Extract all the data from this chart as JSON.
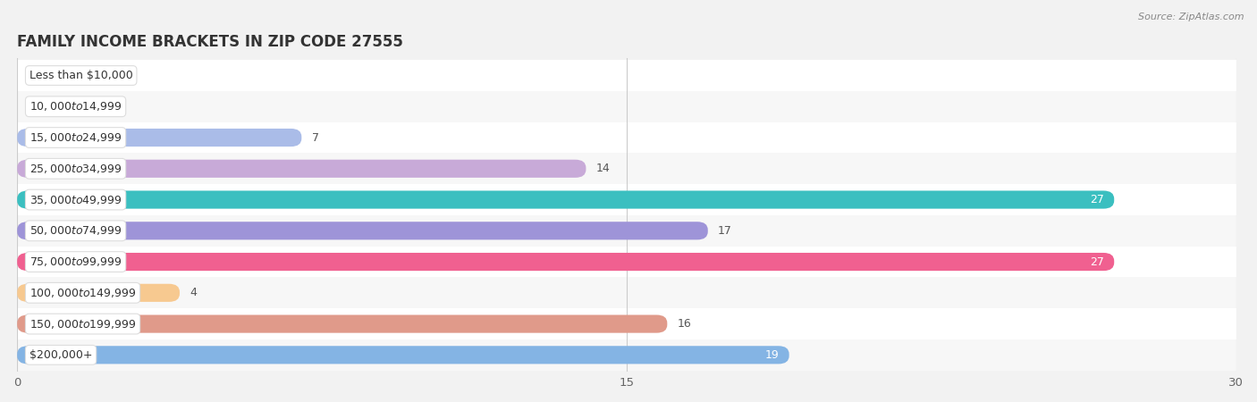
{
  "title": "FAMILY INCOME BRACKETS IN ZIP CODE 27555",
  "source": "Source: ZipAtlas.com",
  "categories": [
    "Less than $10,000",
    "$10,000 to $14,999",
    "$15,000 to $24,999",
    "$25,000 to $34,999",
    "$35,000 to $49,999",
    "$50,000 to $74,999",
    "$75,000 to $99,999",
    "$100,000 to $149,999",
    "$150,000 to $199,999",
    "$200,000+"
  ],
  "values": [
    0,
    0,
    7,
    14,
    27,
    17,
    27,
    4,
    16,
    19
  ],
  "bar_colors": [
    "#f5c78e",
    "#f4a4a4",
    "#aabce8",
    "#c8aad8",
    "#3bbfc0",
    "#9e94d8",
    "#f06090",
    "#f7c990",
    "#e09a8a",
    "#84b4e4"
  ],
  "value_inside": [
    false,
    false,
    false,
    false,
    true,
    false,
    true,
    false,
    false,
    true
  ],
  "xlim_max": 30,
  "xticks": [
    0,
    15,
    30
  ],
  "bg_color": "#f2f2f2",
  "row_bg_even": "#ffffff",
  "row_bg_odd": "#f7f7f7",
  "title_fontsize": 12,
  "bar_height": 0.58,
  "label_fontsize": 9.5,
  "category_fontsize": 9,
  "value_fontsize": 9
}
